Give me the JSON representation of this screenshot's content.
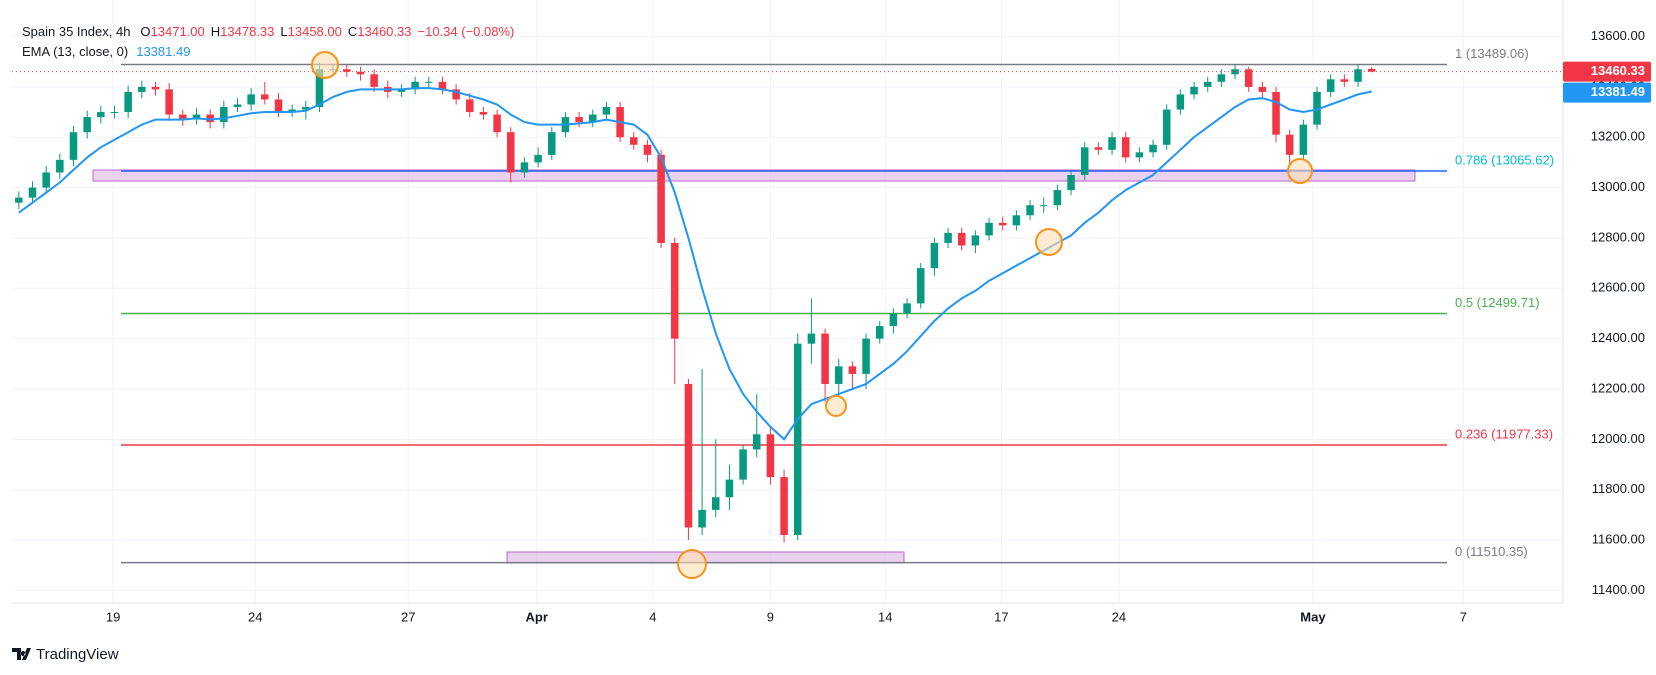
{
  "chart_data": {
    "type": "candlestick",
    "title": "Spain 35 Index, 4h",
    "header_fields": [
      {
        "key": "O",
        "label": "13471.00"
      },
      {
        "key": "H",
        "label": "13478.33"
      },
      {
        "key": "L",
        "label": "13458.00"
      },
      {
        "key": "C",
        "label": "13460.33"
      }
    ],
    "change_label": "−10.34 (−0.08%)",
    "up_color": "#089981",
    "down_color": "#f23645",
    "open": [
      12940,
      12960,
      13000,
      13060,
      13110,
      13220,
      13280,
      13300,
      13300,
      13380,
      13400,
      13390,
      13290,
      13270,
      13290,
      13260,
      13320,
      13330,
      13370,
      13350,
      13300,
      13310,
      13320,
      13470,
      13470,
      13460,
      13450,
      13400,
      13380,
      13390,
      13420,
      13420,
      13390,
      13350,
      13300,
      13290,
      13220,
      13060,
      13100,
      13130,
      13220,
      13280,
      13260,
      13290,
      13320,
      13200,
      13170,
      13130,
      12780,
      12220,
      11650,
      11720,
      11770,
      11840,
      11960,
      12020,
      11850,
      11620,
      12380,
      12420,
      12220,
      12290,
      12260,
      12400,
      12450,
      12500,
      12540,
      12680,
      12780,
      12820,
      12770,
      12810,
      12860,
      12850,
      12890,
      12930,
      12930,
      12990,
      13050,
      13160,
      13150,
      13200,
      13120,
      13140,
      13170,
      13310,
      13370,
      13400,
      13420,
      13450,
      13470,
      13400,
      13380,
      13210,
      13130,
      13250,
      13380,
      13430,
      13420,
      13471
    ],
    "high": [
      12985,
      13025,
      13085,
      13135,
      13245,
      13305,
      13325,
      13325,
      13405,
      13425,
      13420,
      13415,
      13310,
      13315,
      13310,
      13345,
      13355,
      13395,
      13420,
      13375,
      13330,
      13345,
      13495,
      13490,
      13490,
      13480,
      13470,
      13425,
      13410,
      13440,
      13440,
      13440,
      13410,
      13375,
      13320,
      13310,
      13240,
      13120,
      13160,
      13240,
      13300,
      13300,
      13310,
      13340,
      13340,
      13220,
      13190,
      13150,
      12800,
      12240,
      12280,
      12000,
      11900,
      11980,
      12180,
      12050,
      11880,
      12420,
      12560,
      12440,
      12320,
      12310,
      12420,
      12470,
      12520,
      12560,
      12700,
      12800,
      12840,
      12840,
      12830,
      12880,
      12885,
      12910,
      12950,
      12960,
      13010,
      13070,
      13180,
      13180,
      13220,
      13220,
      13160,
      13190,
      13330,
      13390,
      13420,
      13440,
      13470,
      13490,
      13480,
      13420,
      13400,
      13230,
      13270,
      13400,
      13450,
      13450,
      13490,
      13478.33
    ],
    "low": [
      12915,
      12935,
      12975,
      13035,
      13085,
      13195,
      13255,
      13275,
      13275,
      13355,
      13365,
      13265,
      13245,
      13250,
      13235,
      13235,
      13300,
      13305,
      13330,
      13280,
      13280,
      13270,
      13300,
      13445,
      13440,
      13425,
      13380,
      13355,
      13360,
      13370,
      13395,
      13370,
      13330,
      13280,
      13270,
      13200,
      13020,
      13040,
      13080,
      13110,
      13200,
      13240,
      13240,
      13270,
      13180,
      13150,
      13100,
      12760,
      12220,
      11600,
      11620,
      11690,
      11720,
      11820,
      11930,
      11820,
      11590,
      11600,
      12300,
      12150,
      12170,
      12200,
      12200,
      12380,
      12420,
      12480,
      12520,
      12650,
      12760,
      12750,
      12740,
      12790,
      12830,
      12830,
      12870,
      12900,
      12910,
      12970,
      13030,
      13130,
      13130,
      13100,
      13100,
      13120,
      13150,
      13290,
      13350,
      13380,
      13400,
      13430,
      13380,
      13360,
      13180,
      13080,
      13110,
      13230,
      13360,
      13400,
      13400,
      13458
    ],
    "close": [
      12960,
      13000,
      13060,
      13110,
      13220,
      13280,
      13300,
      13300,
      13380,
      13400,
      13390,
      13290,
      13270,
      13290,
      13260,
      13320,
      13330,
      13370,
      13350,
      13300,
      13310,
      13320,
      13470,
      13470,
      13460,
      13450,
      13400,
      13380,
      13390,
      13420,
      13420,
      13390,
      13350,
      13300,
      13290,
      13220,
      13060,
      13100,
      13130,
      13220,
      13280,
      13260,
      13290,
      13320,
      13200,
      13170,
      13130,
      12780,
      12400,
      11650,
      11720,
      11770,
      11840,
      11960,
      12020,
      11850,
      11620,
      12380,
      12420,
      12220,
      12290,
      12260,
      12400,
      12450,
      12500,
      12540,
      12680,
      12780,
      12820,
      12770,
      12810,
      12860,
      12850,
      12890,
      12930,
      12930,
      12990,
      13050,
      13160,
      13150,
      13200,
      13120,
      13140,
      13170,
      13310,
      13370,
      13400,
      13420,
      13450,
      13470,
      13400,
      13380,
      13210,
      13130,
      13250,
      13380,
      13430,
      13420,
      13470,
      13460.33
    ],
    "ema": {
      "name": "EMA (13, close, 0)",
      "color": "#2196f3",
      "values": [
        12900,
        12940,
        12980,
        13020,
        13070,
        13120,
        13160,
        13190,
        13220,
        13250,
        13270,
        13270,
        13270,
        13275,
        13270,
        13275,
        13285,
        13295,
        13300,
        13300,
        13300,
        13305,
        13330,
        13360,
        13380,
        13390,
        13390,
        13390,
        13390,
        13395,
        13395,
        13390,
        13380,
        13365,
        13350,
        13330,
        13290,
        13260,
        13250,
        13250,
        13250,
        13255,
        13260,
        13270,
        13260,
        13250,
        13210,
        13120,
        12980,
        12800,
        12600,
        12420,
        12280,
        12180,
        12110,
        12050,
        12000,
        12080,
        12140,
        12160,
        12180,
        12200,
        12220,
        12260,
        12300,
        12350,
        12410,
        12470,
        12520,
        12560,
        12590,
        12630,
        12660,
        12690,
        12720,
        12750,
        12780,
        12810,
        12860,
        12900,
        12950,
        12990,
        13020,
        13050,
        13100,
        13150,
        13200,
        13240,
        13280,
        13320,
        13350,
        13355,
        13340,
        13310,
        13300,
        13310,
        13330,
        13350,
        13370,
        13381.49
      ]
    },
    "xlim": [
      -0.5,
      113
    ],
    "xticks": [
      {
        "value": 6.9,
        "label": "19"
      },
      {
        "value": 17.3,
        "label": "24"
      },
      {
        "value": 28.5,
        "label": "27"
      },
      {
        "value": 37.9,
        "label": "Apr"
      },
      {
        "value": 46.4,
        "label": "4"
      },
      {
        "value": 55.0,
        "label": "9"
      },
      {
        "value": 63.4,
        "label": "14"
      },
      {
        "value": 71.9,
        "label": "17"
      },
      {
        "value": 80.5,
        "label": "24"
      },
      {
        "value": 94.7,
        "label": "May"
      },
      {
        "value": 105.7,
        "label": "7"
      }
    ],
    "ylim": [
      11350,
      13745
    ],
    "yticks": [
      {
        "value": 11400,
        "label": "11400.00"
      },
      {
        "value": 11600,
        "label": "11600.00"
      },
      {
        "value": 11800,
        "label": "11800.00"
      },
      {
        "value": 12000,
        "label": "12000.00"
      },
      {
        "value": 12200,
        "label": "12200.00"
      },
      {
        "value": 12400,
        "label": "12400.00"
      },
      {
        "value": 12600,
        "label": "12600.00"
      },
      {
        "value": 12800,
        "label": "12800.00"
      },
      {
        "value": 13000,
        "label": "13000.00"
      },
      {
        "value": 13200,
        "label": "13200.00"
      },
      {
        "value": 13400,
        "label": "13400.00"
      },
      {
        "value": 13600,
        "label": "13600.00"
      }
    ],
    "levels": [
      {
        "label": "1 (13489.06)",
        "value": 13489.06,
        "color": "#787b86",
        "line_color": "#787b86"
      },
      {
        "label": "0.786 (13065.62)",
        "value": 13065.62,
        "color": "#00bcd4",
        "line_color": "#2962ff"
      },
      {
        "label": "0.5 (12499.71)",
        "value": 12499.71,
        "color": "#4caf50",
        "line_color": "#4caf50"
      },
      {
        "label": "0.236 (11977.33)",
        "value": 11977.33,
        "color": "#f23645",
        "line_color": "#f23645"
      },
      {
        "label": "0 (11510.35)",
        "value": 11510.35,
        "color": "#787b86",
        "line_color": "#787b86"
      }
    ],
    "brand": "TradingView"
  }
}
